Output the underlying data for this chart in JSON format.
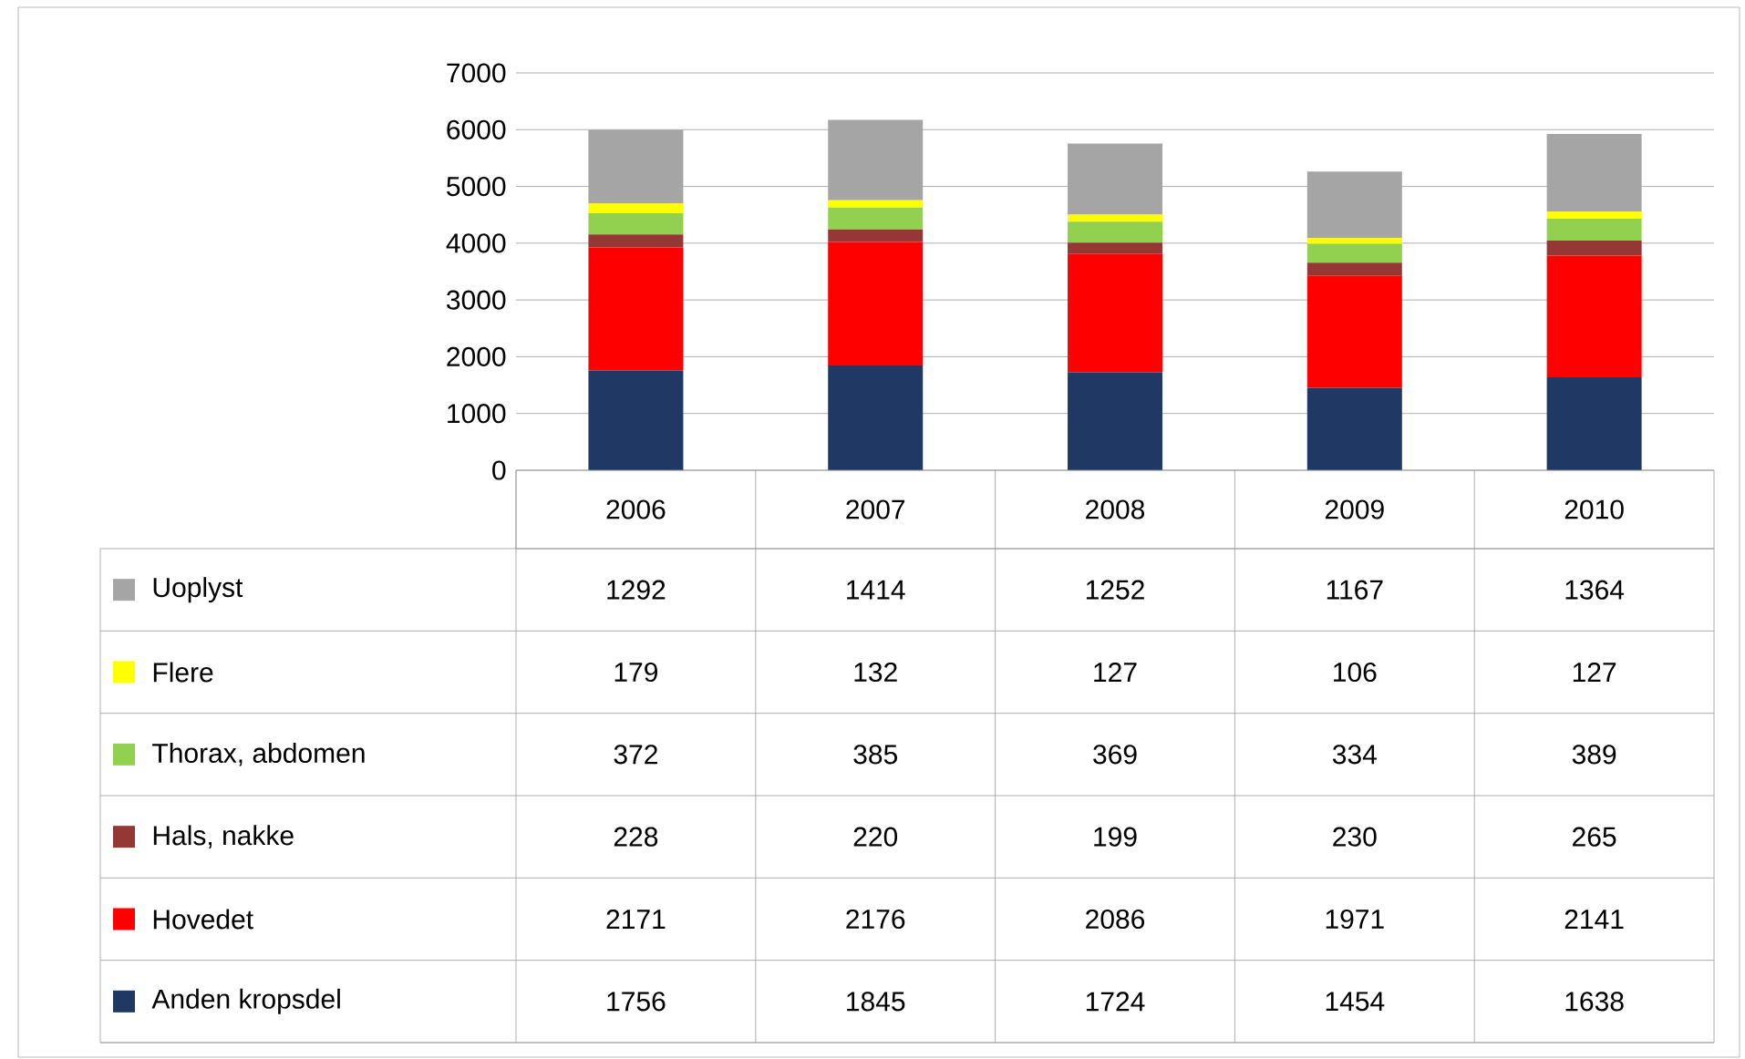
{
  "chart_data": {
    "type": "bar",
    "stacked": true,
    "categories": [
      "2006",
      "2007",
      "2008",
      "2009",
      "2010"
    ],
    "series": [
      {
        "name": "Anden kropsdel",
        "color": "#1f3864",
        "values": [
          1756,
          1845,
          1724,
          1454,
          1638
        ]
      },
      {
        "name": "Hovedet",
        "color": "#ff0000",
        "values": [
          2171,
          2176,
          2086,
          1971,
          2141
        ]
      },
      {
        "name": "Hals, nakke",
        "color": "#953735",
        "values": [
          228,
          220,
          199,
          230,
          265
        ]
      },
      {
        "name": "Thorax, abdomen",
        "color": "#92d050",
        "values": [
          372,
          385,
          369,
          334,
          389
        ]
      },
      {
        "name": "Flere",
        "color": "#ffff00",
        "values": [
          179,
          132,
          127,
          106,
          127
        ]
      },
      {
        "name": "Uoplyst",
        "color": "#a5a5a5",
        "values": [
          1292,
          1414,
          1252,
          1167,
          1364
        ]
      }
    ],
    "ylim": [
      0,
      7000
    ],
    "yticks": [
      0,
      1000,
      2000,
      3000,
      4000,
      5000,
      6000,
      7000
    ],
    "grid": "y",
    "legend": "bottom",
    "data_labels": true
  }
}
